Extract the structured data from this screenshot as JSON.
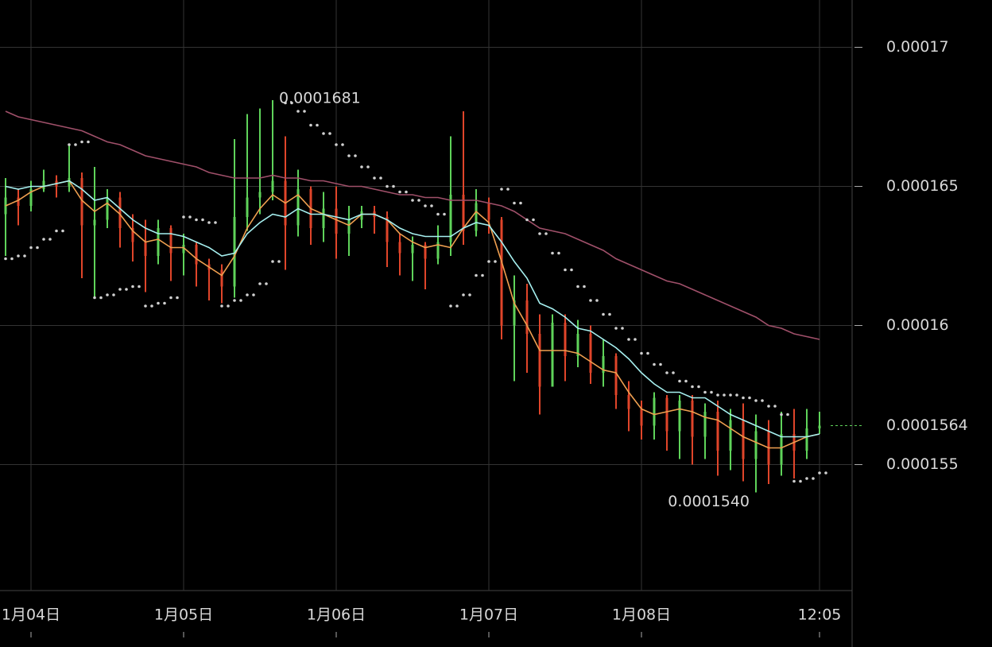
{
  "chart_data": {
    "type": "candlestick",
    "categories": [
      null,
      null,
      "1月04日",
      null,
      null,
      null,
      null,
      null,
      null,
      null,
      null,
      null,
      null,
      null,
      "1月05日",
      null,
      null,
      null,
      null,
      null,
      null,
      null,
      null,
      null,
      null,
      null,
      "1月06日",
      null,
      null,
      null,
      null,
      null,
      null,
      null,
      null,
      null,
      null,
      null,
      "1月07日",
      null,
      null,
      null,
      null,
      null,
      null,
      null,
      null,
      null,
      null,
      null,
      "1月08日",
      null,
      null,
      null,
      null,
      null,
      null,
      null,
      null,
      null,
      null,
      null,
      null,
      null,
      "12:05"
    ],
    "open": [
      0.000164,
      0.0001646,
      0.0001643,
      0.0001649,
      0.0001652,
      0.000165,
      0.0001653,
      0.0001636,
      0.0001638,
      0.0001646,
      0.0001635,
      0.000163,
      0.0001625,
      0.0001635,
      0.0001626,
      0.0001629,
      0.0001622,
      0.000162,
      0.0001614,
      0.0001639,
      0.0001646,
      0.0001648,
      0.0001652,
      0.0001636,
      0.0001649,
      0.0001635,
      0.0001642,
      0.0001633,
      0.0001638,
      0.0001641,
      0.0001639,
      0.000163,
      0.0001626,
      0.0001629,
      0.0001624,
      0.000163,
      0.0001647,
      0.0001634,
      0.0001644,
      0.0001638,
      0.00016,
      0.0001609,
      0.0001597,
      0.0001578,
      0.0001601,
      0.0001589,
      0.0001597,
      0.0001583,
      0.0001589,
      0.0001575,
      0.000157,
      0.0001564,
      0.0001574,
      0.0001562,
      0.0001573,
      0.000156,
      0.0001569,
      0.0001555,
      0.0001566,
      0.0001552,
      0.0001562,
      0.000155,
      0.0001561,
      0.0001555,
      0.0001563
    ],
    "high": [
      0.0001653,
      0.0001649,
      0.0001652,
      0.0001656,
      0.0001654,
      0.0001665,
      0.0001655,
      0.0001657,
      0.0001649,
      0.0001648,
      0.000164,
      0.0001638,
      0.0001638,
      0.0001636,
      0.0001633,
      0.000163,
      0.0001624,
      0.0001622,
      0.0001667,
      0.0001676,
      0.0001678,
      0.0001681,
      0.0001668,
      0.0001656,
      0.000165,
      0.0001648,
      0.000165,
      0.0001643,
      0.0001643,
      0.0001643,
      0.0001641,
      0.0001633,
      0.0001632,
      0.000163,
      0.0001636,
      0.0001668,
      0.0001677,
      0.0001649,
      0.0001646,
      0.0001639,
      0.0001618,
      0.0001615,
      0.0001604,
      0.0001604,
      0.0001604,
      0.0001602,
      0.00016,
      0.0001595,
      0.000159,
      0.000158,
      0.0001573,
      0.0001576,
      0.0001575,
      0.0001575,
      0.0001575,
      0.0001572,
      0.0001573,
      0.000157,
      0.0001572,
      0.0001568,
      0.0001566,
      0.0001569,
      0.000157,
      0.000157,
      0.0001569
    ],
    "low": [
      0.0001625,
      0.0001636,
      0.0001641,
      0.0001648,
      0.0001646,
      0.0001648,
      0.0001617,
      0.000161,
      0.0001635,
      0.0001628,
      0.0001623,
      0.0001612,
      0.0001622,
      0.0001616,
      0.0001618,
      0.0001614,
      0.0001609,
      0.0001608,
      0.000161,
      0.0001634,
      0.000164,
      0.0001645,
      0.000162,
      0.0001632,
      0.0001629,
      0.000163,
      0.0001624,
      0.0001625,
      0.0001635,
      0.0001633,
      0.0001621,
      0.0001618,
      0.0001616,
      0.0001613,
      0.0001622,
      0.0001625,
      0.0001629,
      0.0001632,
      0.0001633,
      0.0001595,
      0.000158,
      0.0001583,
      0.0001568,
      0.0001578,
      0.000158,
      0.0001585,
      0.0001579,
      0.0001578,
      0.000157,
      0.0001562,
      0.0001559,
      0.0001559,
      0.0001555,
      0.0001552,
      0.000155,
      0.0001552,
      0.0001546,
      0.0001548,
      0.0001544,
      0.000154,
      0.0001543,
      0.0001546,
      0.0001545,
      0.0001552,
      0.0001561
    ],
    "close": [
      0.0001646,
      0.0001643,
      0.0001649,
      0.0001652,
      0.000165,
      0.0001653,
      0.0001636,
      0.0001638,
      0.0001646,
      0.0001635,
      0.000163,
      0.0001625,
      0.0001635,
      0.0001626,
      0.0001629,
      0.0001622,
      0.000162,
      0.0001614,
      0.0001639,
      0.0001646,
      0.0001648,
      0.0001652,
      0.0001636,
      0.0001649,
      0.0001635,
      0.0001642,
      0.0001633,
      0.0001638,
      0.0001641,
      0.0001639,
      0.000163,
      0.0001626,
      0.0001629,
      0.0001624,
      0.000163,
      0.0001647,
      0.0001634,
      0.0001644,
      0.0001638,
      0.00016,
      0.0001609,
      0.0001597,
      0.0001578,
      0.0001601,
      0.0001589,
      0.0001597,
      0.0001583,
      0.0001589,
      0.0001575,
      0.000157,
      0.0001564,
      0.0001574,
      0.0001562,
      0.0001573,
      0.000156,
      0.0001569,
      0.0001555,
      0.0001566,
      0.0001552,
      0.0001562,
      0.000155,
      0.0001561,
      0.0001555,
      0.0001563,
      0.0001564
    ],
    "up_color": "#5fd35a",
    "down_color": "#e0452a",
    "lines": [
      {
        "color": "#f0a050",
        "values": [
          0.0001643,
          0.0001645,
          0.0001648,
          0.000165,
          0.0001651,
          0.0001652,
          0.0001645,
          0.0001641,
          0.0001644,
          0.000164,
          0.0001634,
          0.000163,
          0.0001631,
          0.0001628,
          0.0001628,
          0.0001624,
          0.0001621,
          0.0001618,
          0.0001625,
          0.0001635,
          0.0001642,
          0.0001647,
          0.0001644,
          0.0001647,
          0.0001642,
          0.000164,
          0.0001638,
          0.0001636,
          0.000164,
          0.000164,
          0.0001638,
          0.0001633,
          0.000163,
          0.0001628,
          0.0001629,
          0.0001628,
          0.0001635,
          0.0001641,
          0.0001637,
          0.0001623,
          0.0001608,
          0.00016,
          0.0001591,
          0.0001591,
          0.0001591,
          0.000159,
          0.0001587,
          0.0001584,
          0.0001583,
          0.0001576,
          0.000157,
          0.0001568,
          0.0001569,
          0.000157,
          0.0001569,
          0.0001567,
          0.0001566,
          0.0001563,
          0.000156,
          0.0001558,
          0.0001556,
          0.0001556,
          0.0001558,
          0.000156,
          0.0001561
        ]
      },
      {
        "color": "#a6f0f0",
        "values": [
          0.000165,
          0.0001649,
          0.000165,
          0.000165,
          0.0001651,
          0.0001652,
          0.0001649,
          0.0001645,
          0.0001646,
          0.0001642,
          0.0001638,
          0.0001635,
          0.0001633,
          0.0001633,
          0.0001632,
          0.000163,
          0.0001628,
          0.0001625,
          0.0001626,
          0.0001633,
          0.0001637,
          0.000164,
          0.0001639,
          0.0001642,
          0.000164,
          0.000164,
          0.0001639,
          0.0001638,
          0.000164,
          0.000164,
          0.0001638,
          0.0001635,
          0.0001633,
          0.0001632,
          0.0001632,
          0.0001632,
          0.0001635,
          0.0001637,
          0.0001636,
          0.000163,
          0.0001623,
          0.0001617,
          0.0001608,
          0.0001606,
          0.0001603,
          0.0001599,
          0.0001598,
          0.0001595,
          0.0001592,
          0.0001588,
          0.0001583,
          0.0001579,
          0.0001576,
          0.0001576,
          0.0001574,
          0.0001574,
          0.0001571,
          0.0001568,
          0.0001566,
          0.0001564,
          0.0001562,
          0.000156,
          0.000156,
          0.000156,
          0.0001561
        ]
      },
      {
        "color": "#a0506a",
        "values": [
          0.0001677,
          0.0001675,
          0.0001674,
          0.0001673,
          0.0001672,
          0.0001671,
          0.000167,
          0.0001668,
          0.0001666,
          0.0001665,
          0.0001663,
          0.0001661,
          0.000166,
          0.0001659,
          0.0001658,
          0.0001657,
          0.0001655,
          0.0001654,
          0.0001653,
          0.0001653,
          0.0001653,
          0.0001654,
          0.0001653,
          0.0001653,
          0.0001652,
          0.0001652,
          0.0001651,
          0.000165,
          0.000165,
          0.0001649,
          0.0001648,
          0.0001647,
          0.0001647,
          0.0001646,
          0.0001646,
          0.0001645,
          0.0001645,
          0.0001645,
          0.0001644,
          0.0001643,
          0.0001641,
          0.0001638,
          0.0001635,
          0.0001634,
          0.0001633,
          0.0001631,
          0.0001629,
          0.0001627,
          0.0001624,
          0.0001622,
          0.000162,
          0.0001618,
          0.0001616,
          0.0001615,
          0.0001613,
          0.0001611,
          0.0001609,
          0.0001607,
          0.0001605,
          0.0001603,
          0.00016,
          0.0001599,
          0.0001597,
          0.0001596,
          0.0001595
        ]
      }
    ],
    "sar": {
      "color": "#d0d0d0",
      "values": [
        0.0001624,
        0.0001625,
        0.0001628,
        0.0001631,
        0.0001634,
        0.0001665,
        0.0001666,
        0.000161,
        0.0001611,
        0.0001613,
        0.0001614,
        0.0001607,
        0.0001608,
        0.000161,
        0.0001639,
        0.0001638,
        0.0001637,
        0.0001607,
        0.0001609,
        0.0001611,
        0.0001615,
        0.0001623,
        0.000168,
        0.0001677,
        0.0001672,
        0.0001669,
        0.0001665,
        0.0001661,
        0.0001657,
        0.0001653,
        0.000165,
        0.0001648,
        0.0001645,
        0.0001643,
        0.000164,
        0.0001607,
        0.0001611,
        0.0001618,
        0.0001623,
        0.0001649,
        0.0001644,
        0.0001638,
        0.0001633,
        0.0001626,
        0.000162,
        0.0001614,
        0.0001609,
        0.0001604,
        0.0001599,
        0.0001595,
        0.000159,
        0.0001586,
        0.0001583,
        0.000158,
        0.0001578,
        0.0001576,
        0.0001575,
        0.0001575,
        0.0001574,
        0.0001573,
        0.0001571,
        0.0001568,
        0.0001544,
        0.0001545,
        0.0001547
      ]
    },
    "ylim": [
      0.0001505,
      0.0001717
    ],
    "yticks": [
      0.000155,
      0.00016,
      0.000165,
      0.00017
    ],
    "grid": true,
    "last_price": 0.0001564,
    "annotations": [
      {
        "value": 0.0001681,
        "label": "0.0001681",
        "index": 21,
        "kind": "high"
      },
      {
        "value": 0.000154,
        "label": "0.0001540",
        "index": 59,
        "kind": "low"
      }
    ]
  }
}
